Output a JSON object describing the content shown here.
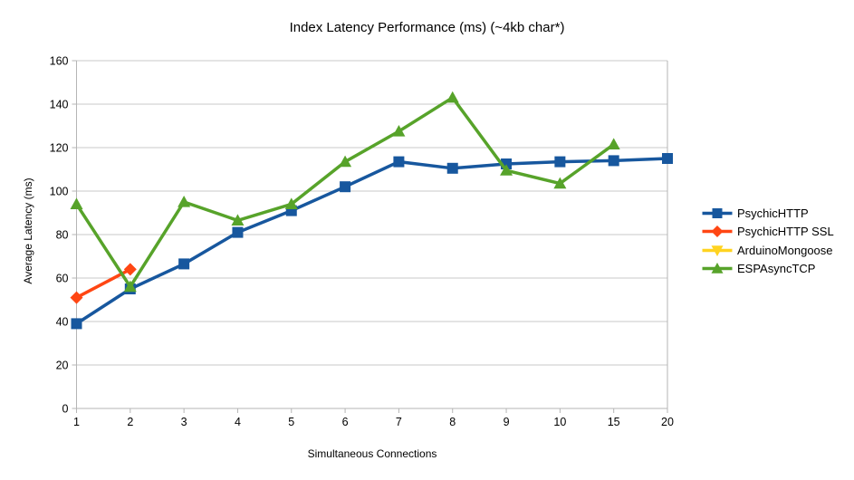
{
  "title": "Index Latency Performance (ms) (~4kb char*)",
  "colors": {
    "background": "#FFFFFF",
    "grid": "#C9C9C9",
    "axis": "#B5B5B5",
    "text": "#000000"
  },
  "chart_data": {
    "type": "line",
    "title": "Index Latency Performance (ms) (~4kb char*)",
    "xlabel": "Simultaneous Connections",
    "ylabel": "Average Latency (ms)",
    "categories": [
      "1",
      "2",
      "3",
      "4",
      "5",
      "6",
      "7",
      "8",
      "9",
      "10",
      "15",
      "20"
    ],
    "ylim": [
      0,
      160
    ],
    "ytick_step": 20,
    "ytick_labels": [
      "0",
      "20",
      "40",
      "60",
      "80",
      "100",
      "120",
      "140",
      "160"
    ],
    "grid": "horizontal",
    "legend_position": "right",
    "series": [
      {
        "name": "PsychicHTTP",
        "color": "#17579E",
        "marker": "square",
        "values": [
          39,
          55,
          66.5,
          81,
          91,
          102,
          113.5,
          110.5,
          112.5,
          113.5,
          114,
          115
        ]
      },
      {
        "name": "PsychicHTTP SSL",
        "color": "#FF4613",
        "marker": "diamond",
        "values": [
          51,
          64,
          null,
          null,
          null,
          null,
          null,
          null,
          null,
          null,
          null,
          null
        ]
      },
      {
        "name": "ArduinoMongoose",
        "color": "#FFD320",
        "marker": "triangle-down",
        "values": [
          null,
          null,
          null,
          null,
          null,
          null,
          null,
          null,
          null,
          null,
          null,
          null
        ]
      },
      {
        "name": "ESPAsyncTCP",
        "color": "#57A32A",
        "marker": "triangle-up",
        "values": [
          94,
          56,
          95,
          86.5,
          94,
          113.5,
          127.5,
          143,
          109.5,
          103.5,
          121.5,
          null
        ]
      }
    ]
  }
}
